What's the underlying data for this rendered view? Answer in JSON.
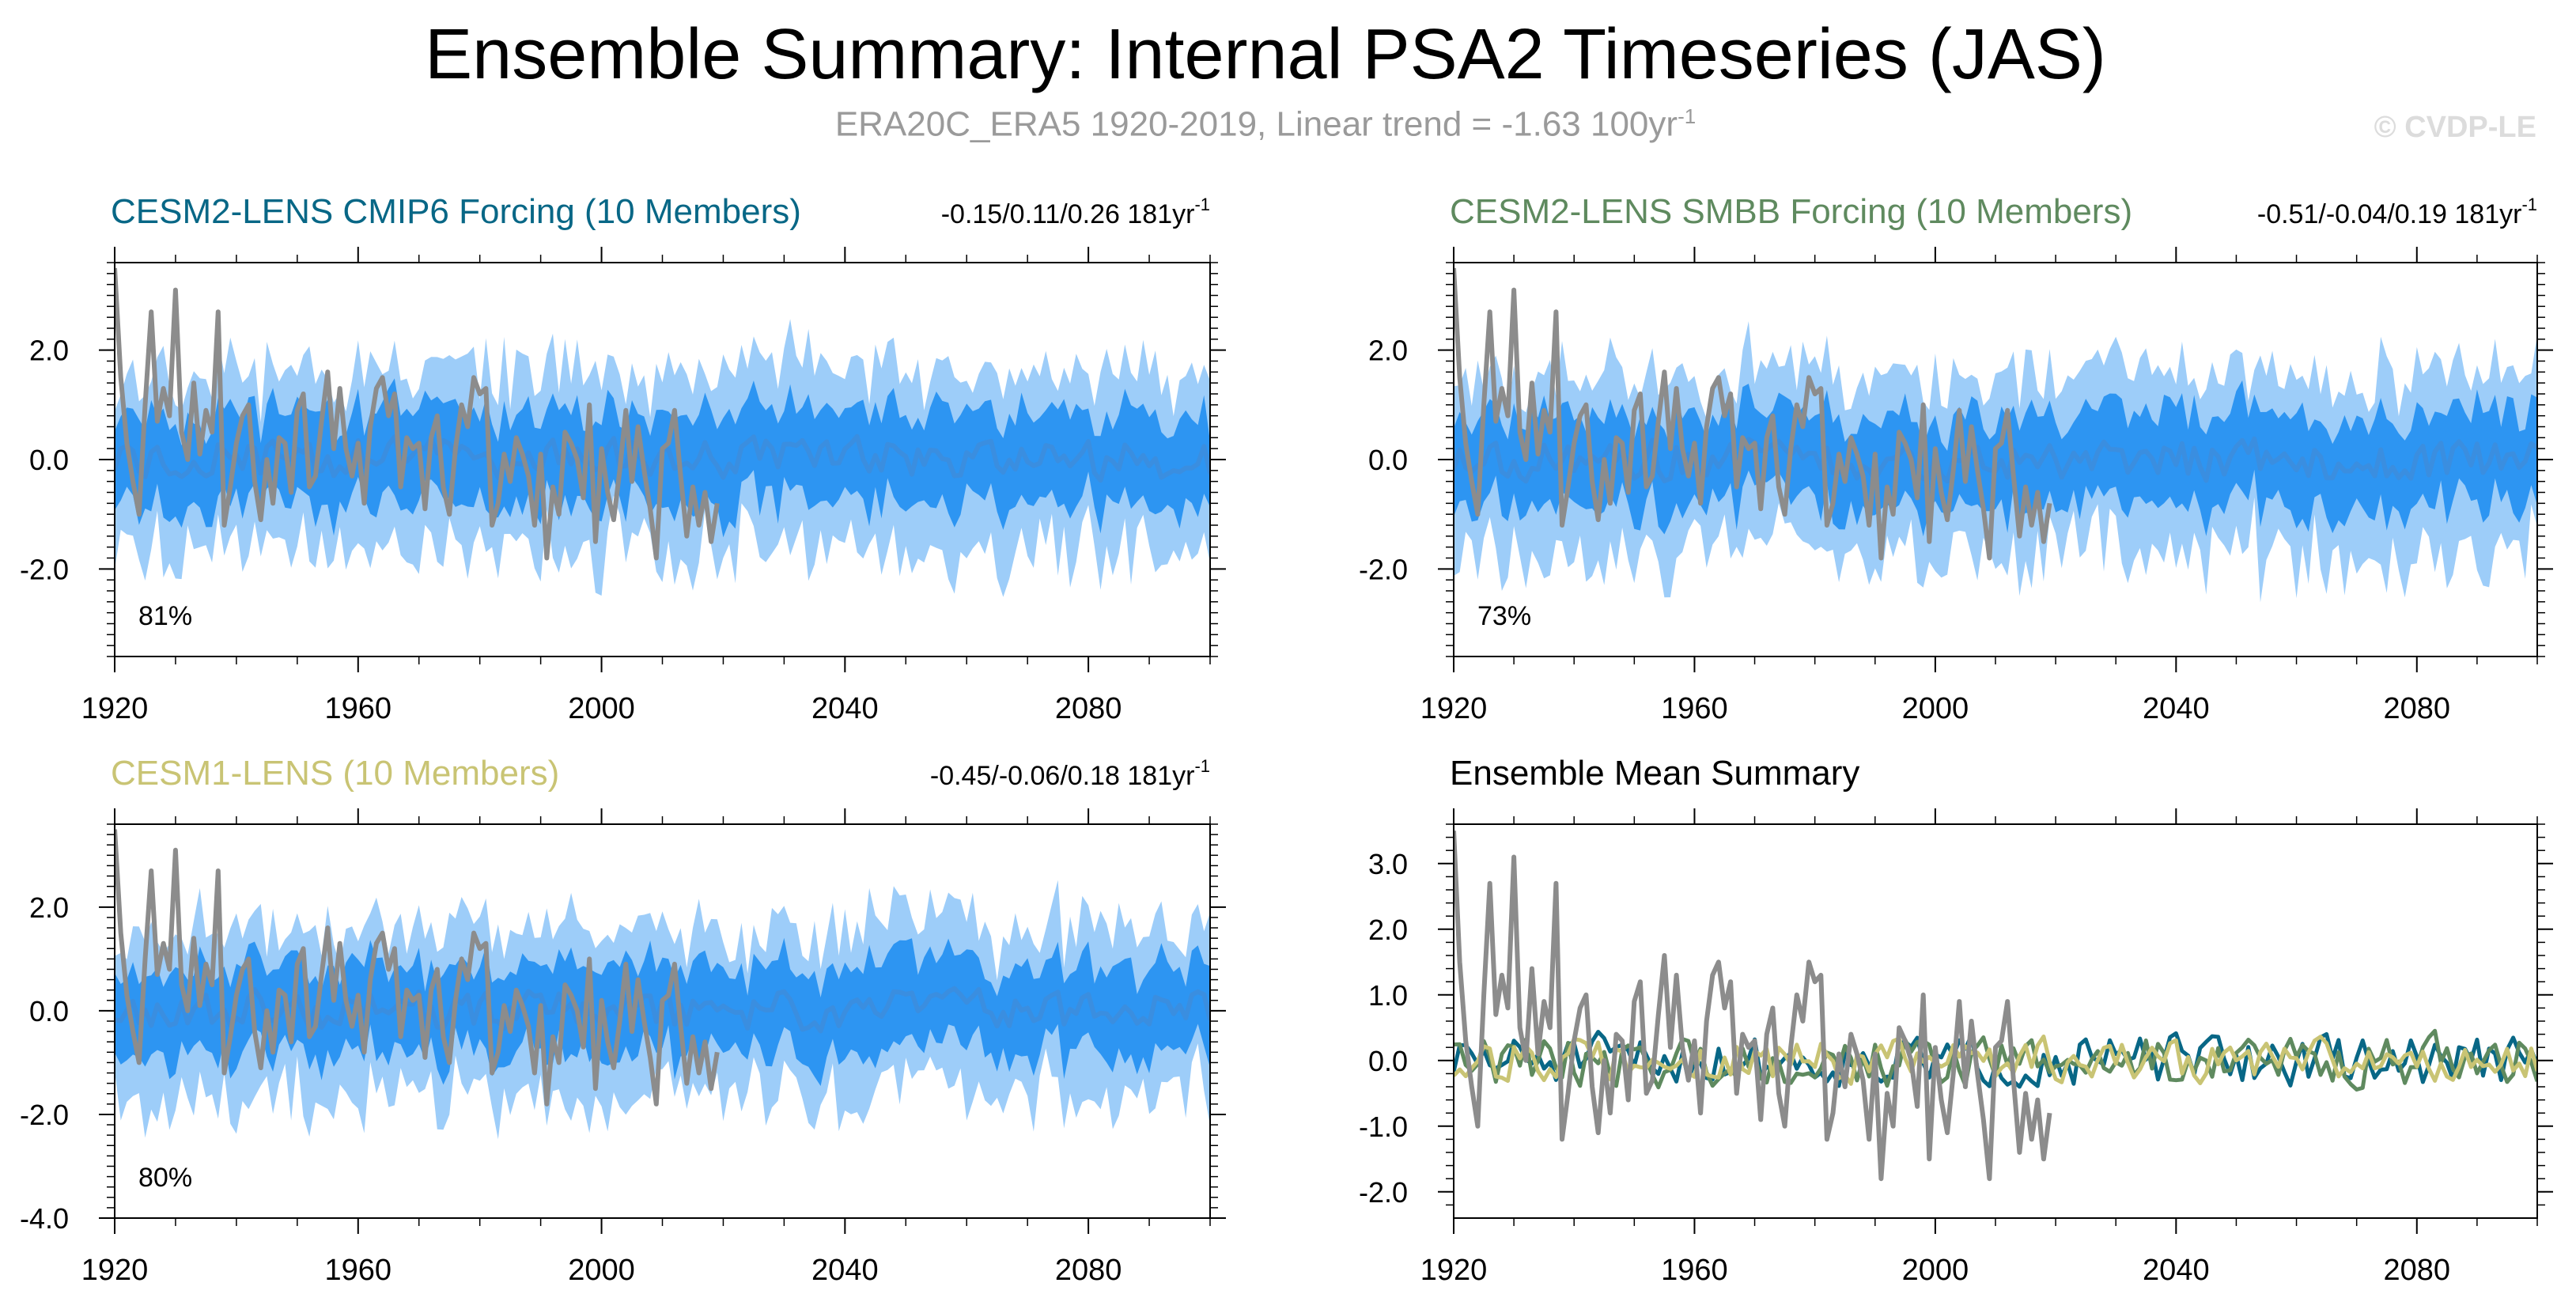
{
  "title": "Ensemble Summary: Internal PSA2 Timeseries (JAS)",
  "subtitle": {
    "text": "ERA20C_ERA5 1920-2019, Linear trend = -1.63 100yr",
    "sup": "-1"
  },
  "watermark": "© CVDP-LE",
  "colors": {
    "obs": "#8c8c8c",
    "ens_mean": "#2f8fe8",
    "band_inner": "#2d95f2",
    "band_outer": "#9dcdf9",
    "cesm2_cmip6": "#086786",
    "cesm2_smbb": "#5f8a5f",
    "cesm1": "#c9c474"
  },
  "chart_data": [
    {
      "type": "area",
      "title": "CESM2-LENS CMIP6 Forcing (10 Members)",
      "title_color": "#086786",
      "trend_text": "-0.15/0.11/0.26 181yr",
      "trend_sup": "-1",
      "percent": "81%",
      "xlim": [
        1920,
        2100
      ],
      "ylim": [
        -3.6,
        3.6
      ],
      "xticks": [
        1920,
        1960,
        2000,
        2040,
        2080
      ],
      "xtick_labels": [
        "1920",
        "1960",
        "2000",
        "2040",
        "2080"
      ],
      "yticks": [
        2.0,
        0.0,
        -2.0
      ],
      "ytick_labels": [
        "2.0",
        "0.0",
        "-2.0"
      ],
      "seed": 11
    },
    {
      "type": "area",
      "title": "CESM2-LENS SMBB Forcing (10 Members)",
      "title_color": "#5f8a5f",
      "trend_text": "-0.51/-0.04/0.19 181yr",
      "trend_sup": "-1",
      "percent": "73%",
      "xlim": [
        1920,
        2100
      ],
      "ylim": [
        -3.6,
        3.6
      ],
      "xticks": [
        1920,
        1960,
        2000,
        2040,
        2080
      ],
      "xtick_labels": [
        "1920",
        "1960",
        "2000",
        "2040",
        "2080"
      ],
      "yticks": [
        2.0,
        0.0,
        -2.0
      ],
      "ytick_labels": [
        "2.0",
        "0.0",
        "-2.0"
      ],
      "seed": 23
    },
    {
      "type": "area",
      "title": "CESM1-LENS (10 Members)",
      "title_color": "#c9c474",
      "trend_text": "-0.45/-0.06/0.18 181yr",
      "trend_sup": "-1",
      "percent": "80%",
      "xlim": [
        1920,
        2100
      ],
      "ylim": [
        -4.0,
        3.6
      ],
      "xticks": [
        1920,
        1960,
        2000,
        2040,
        2080
      ],
      "xtick_labels": [
        "1920",
        "1960",
        "2000",
        "2040",
        "2080"
      ],
      "yticks": [
        2.0,
        0.0,
        -2.0,
        -4.0
      ],
      "ytick_labels": [
        "2.0",
        "0.0",
        "-2.0",
        "-4.0"
      ],
      "seed": 37
    },
    {
      "type": "line",
      "title": "Ensemble Mean Summary",
      "title_color": "#000000",
      "xlim": [
        1920,
        2100
      ],
      "ylim": [
        -2.4,
        3.6
      ],
      "xticks": [
        1920,
        1960,
        2000,
        2040,
        2080
      ],
      "xtick_labels": [
        "1920",
        "1960",
        "2000",
        "2040",
        "2080"
      ],
      "yticks": [
        3.0,
        2.0,
        1.0,
        0.0,
        -1.0,
        -2.0
      ],
      "ytick_labels": [
        "3.0",
        "2.0",
        "1.0",
        "0.0",
        "-1.0",
        "-2.0"
      ],
      "seed": 51
    }
  ],
  "obs_series": {
    "years": [
      1920,
      2019
    ],
    "values": [
      3.5,
      1.5,
      0.3,
      -0.4,
      -1.0,
      1.0,
      2.7,
      0.7,
      1.3,
      0.8,
      3.1,
      0.5,
      0.0,
      1.4,
      0.1,
      0.9,
      0.5,
      2.7,
      -1.2,
      -0.5,
      0.3,
      0.8,
      1.0,
      -0.4,
      -1.1,
      0.0,
      -0.8,
      0.4,
      0.3,
      -0.6,
      0.9,
      1.2,
      -0.5,
      -0.3,
      0.7,
      1.6,
      0.2,
      1.3,
      0.2,
      -0.3,
      0.3,
      -0.8,
      0.6,
      1.3,
      1.5,
      0.8,
      1.2,
      -0.5,
      0.4,
      0.2,
      0.3,
      -0.9,
      0.4,
      0.8,
      -0.5,
      -1.0,
      0.2,
      1.0,
      0.6,
      1.5,
      1.2,
      1.3,
      -1.2,
      -0.8,
      0.1,
      -0.4,
      0.4,
      0.1,
      -0.3,
      -1.2,
      0.1,
      -1.8,
      -0.5,
      -1.0,
      0.5,
      0.3,
      0.0,
      -0.7,
      1.0,
      -1.5,
      0.2,
      -0.6,
      -1.1,
      -0.2,
      0.9,
      -0.4,
      0.6,
      -0.2,
      -0.9,
      -1.8,
      0.2,
      0.3,
      0.9,
      -0.3,
      -1.4,
      -0.5,
      -1.2,
      -0.6,
      -1.5,
      -0.8
    ]
  }
}
